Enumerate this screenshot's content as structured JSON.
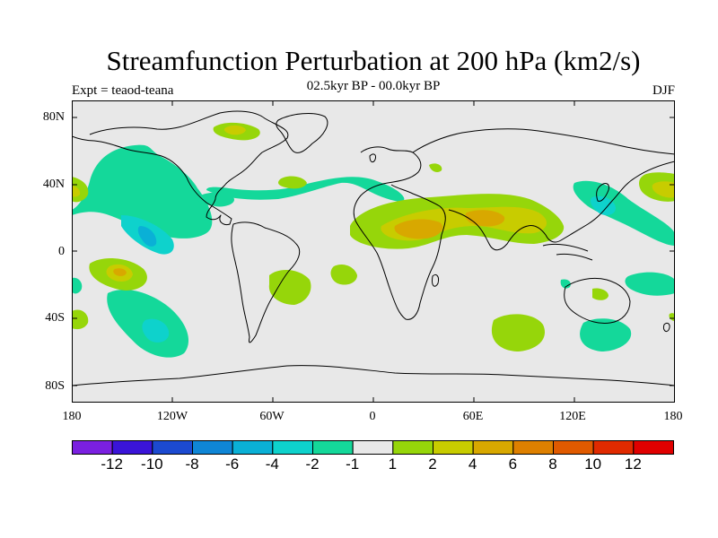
{
  "title": "Streamfunction Perturbation at 200 hPa (km2/s)",
  "subtitle_left": "Expt = teaod-teana",
  "subtitle_center": "02.5kyr BP - 00.0kyr BP",
  "season": "DJF",
  "y_axis_labels": [
    "80N",
    "40N",
    "0",
    "40S",
    "80S"
  ],
  "x_axis_labels": [
    "180",
    "120W",
    "60W",
    "0",
    "60E",
    "120E",
    "180"
  ],
  "colorbar": {
    "labels": [
      "-12",
      "-10",
      "-8",
      "-6",
      "-4",
      "-2",
      "-1",
      "1",
      "2",
      "4",
      "6",
      "8",
      "10",
      "12"
    ],
    "colors": [
      "#7a20e0",
      "#3a14d8",
      "#1c4ad0",
      "#0f86d6",
      "#0ab0d6",
      "#0ed2cc",
      "#14d89a",
      "#e8e8e8",
      "#96d60a",
      "#c8cc00",
      "#d8a800",
      "#de8000",
      "#e05a00",
      "#e02a00",
      "#e00000"
    ]
  },
  "colors": {
    "land_bg": "#e8e8e8",
    "coast": "#000000"
  }
}
